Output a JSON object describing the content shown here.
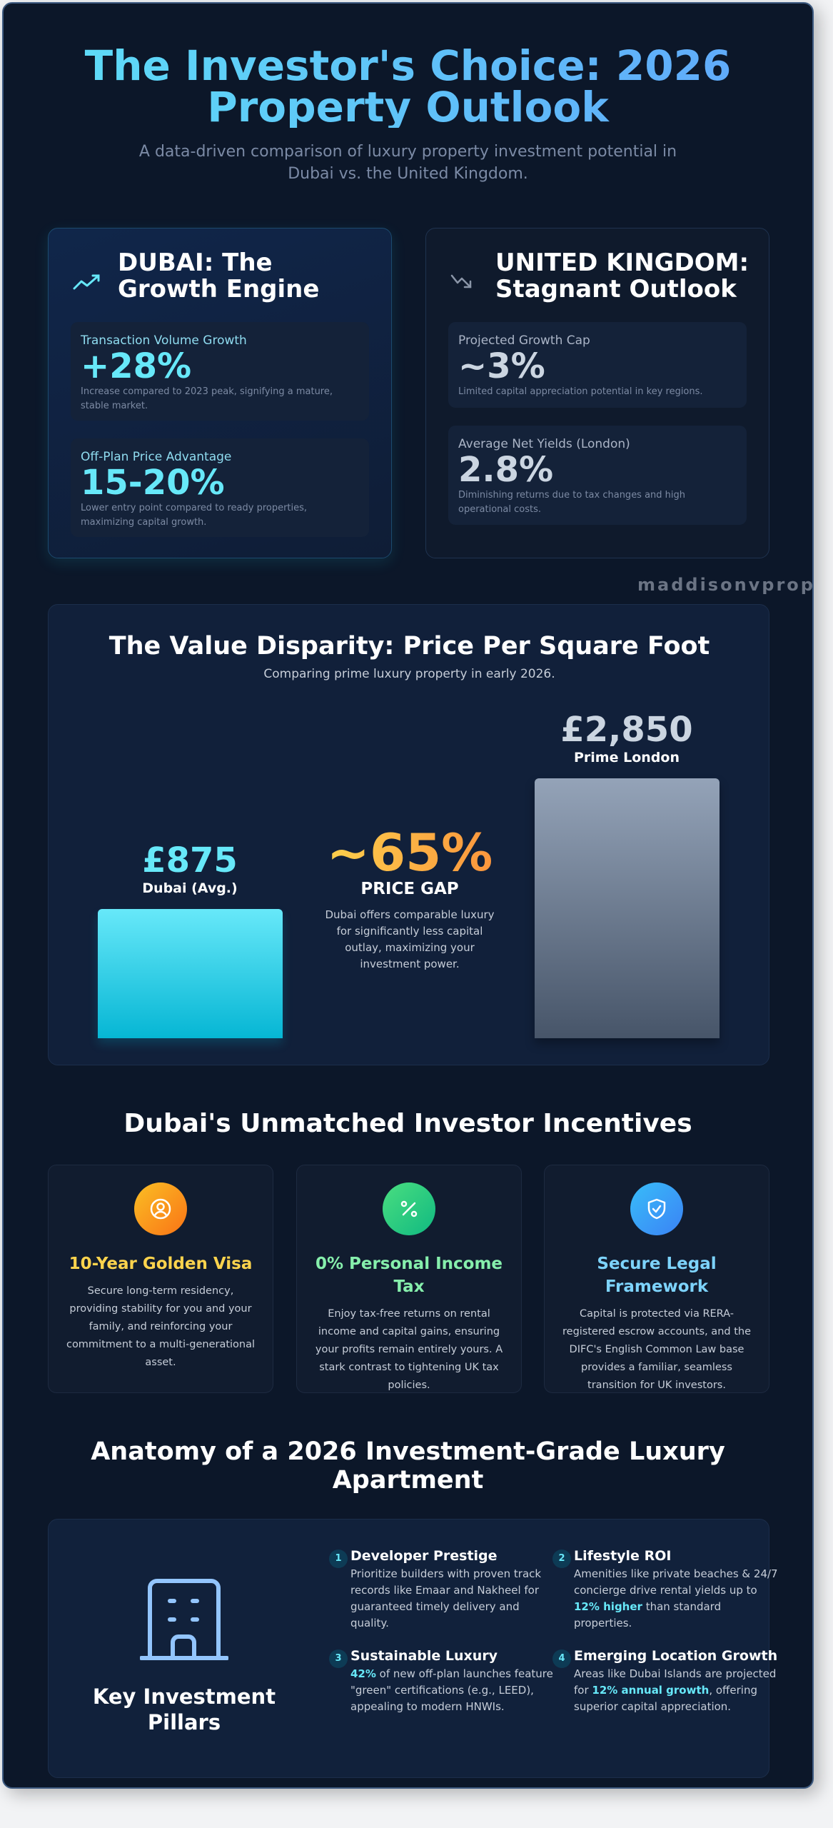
{
  "header": {
    "title": "The Investor's Choice: 2026 Property Outlook",
    "subtitle": "A data-driven comparison of luxury property investment potential in Dubai vs. the United Kingdom."
  },
  "dubai": {
    "icon": "trending-up-icon",
    "title": "DUBAI: The Growth Engine",
    "stats": [
      {
        "label": "Transaction Volume Growth",
        "value": "+28%",
        "desc": "Increase compared to 2023 peak, signifying a mature, stable market."
      },
      {
        "label": "Off-Plan Price Advantage",
        "value": "15-20%",
        "desc": "Lower entry point compared to ready properties, maximizing capital growth."
      }
    ]
  },
  "uk": {
    "icon": "trending-down-icon",
    "title": "UNITED KINGDOM: Stagnant Outlook",
    "stats": [
      {
        "label": "Projected Growth Cap",
        "value": "~3%",
        "desc": "Limited capital appreciation potential in key regions."
      },
      {
        "label": "Average Net Yields (London)",
        "value": "2.8%",
        "desc": "Diminishing returns due to tax changes and high operational costs."
      }
    ]
  },
  "watermark": "maddisonvpropert",
  "chart_data": {
    "type": "bar",
    "title": "The Value Disparity: Price Per Square Foot",
    "subtitle": "Comparing prime luxury property in early 2026.",
    "categories": [
      "Dubai (Avg.)",
      "Prime London"
    ],
    "values": [
      875,
      2850
    ],
    "value_labels": [
      "£875",
      "£2,850"
    ],
    "colors": [
      "#22d3ee",
      "#64748b"
    ],
    "annotation": {
      "value": "~65%",
      "label": "PRICE GAP",
      "desc": "Dubai offers comparable luxury for significantly less capital outlay, maximizing your investment power."
    }
  },
  "incentives": {
    "title": "Dubai's Unmatched Investor Incentives",
    "items": [
      {
        "icon": "user-badge-icon",
        "title": "10-Year Golden Visa",
        "desc": "Secure long-term residency, providing stability for you and your family, and reinforcing your commitment to a multi-generational asset.",
        "color": "#fcd34d"
      },
      {
        "icon": "percent-icon",
        "title": "0% Personal Income Tax",
        "desc": "Enjoy tax-free returns on rental income and capital gains, ensuring your profits remain entirely yours. A stark contrast to tightening UK tax policies.",
        "color": "#86efac"
      },
      {
        "icon": "shield-check-icon",
        "title": "Secure Legal Framework",
        "desc": "Capital is protected via RERA-registered escrow accounts, and the DIFC's English Common Law base provides a familiar, seamless transition for UK investors.",
        "color": "#7dd3fc"
      }
    ]
  },
  "anatomy": {
    "title": "Anatomy of a 2026 Investment-Grade Luxury Apartment",
    "pillars_label": "Key Investment Pillars",
    "icon": "building-icon",
    "items": [
      {
        "n": "1",
        "title": "Developer Prestige",
        "pre": "Prioritize builders with proven track records like Emaar and Nakheel for guaranteed timely delivery and quality.",
        "hl": "",
        "post": ""
      },
      {
        "n": "2",
        "title": "Lifestyle ROI",
        "pre": "Amenities like private beaches & 24/7 concierge drive rental yields up to ",
        "hl": "12% higher",
        "post": " than standard properties."
      },
      {
        "n": "3",
        "title": "Sustainable Luxury",
        "pre": "",
        "hl": "42%",
        "post": " of new off-plan launches feature \"green\" certifications (e.g., LEED), appealing to modern HNWIs."
      },
      {
        "n": "4",
        "title": "Emerging Location Growth",
        "pre": "Areas like Dubai Islands are projected for ",
        "hl": "12% annual growth",
        "post": ", offering superior capital appreciation."
      }
    ]
  }
}
